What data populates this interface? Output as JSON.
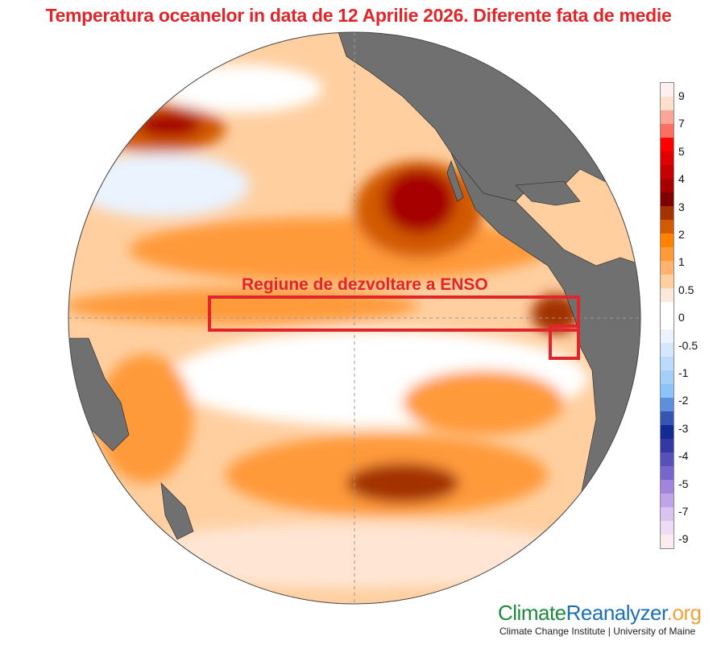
{
  "title": "Temperatura oceanelor in data de 12 Aprilie 2026. Diferente fata de medie",
  "annotation": {
    "label": "Regiune de dezvoltare a ENSO",
    "box_color": "#e0262b"
  },
  "colorbar": {
    "ticks": [
      "9",
      "7",
      "5",
      "4",
      "3",
      "2",
      "1",
      "0.5",
      "0",
      "-0.5",
      "-1",
      "-2",
      "-3",
      "-4",
      "-5",
      "-7",
      "-9"
    ],
    "colors": [
      "#fdf0f0",
      "#fde0cc",
      "#fca698",
      "#fb6e62",
      "#ff0000",
      "#e00000",
      "#c40000",
      "#a60000",
      "#800000",
      "#a33300",
      "#d25a00",
      "#ff8200",
      "#ff9a3a",
      "#ffb36e",
      "#ffcfa0",
      "#fde9dc",
      "#ffffff",
      "#ffffff",
      "#eaf3fe",
      "#d4e7fc",
      "#bcdbfa",
      "#a4cff9",
      "#8cc3f8",
      "#5f8fdc",
      "#3455b0",
      "#132a92",
      "#3438a4",
      "#5650b8",
      "#7866cc",
      "#a284dc",
      "#c0a4e8",
      "#d8c4f0",
      "#ecdcf4",
      "#fdecef"
    ]
  },
  "logo": {
    "part1": "Climate",
    "part2": "Reanalyzer",
    "part3": ".org",
    "subtitle": "Climate Change Institute | University of Maine",
    "colors": {
      "part1": "#1f8a3c",
      "part2": "#1d6fb5",
      "part3": "#f0a33a"
    }
  },
  "map": {
    "projection": "orthographic",
    "region": "Pacific Ocean",
    "ocean_anomaly_colors": {
      "warm_light": "#ffcfa0",
      "warm": "#ff9a3a",
      "warm_strong": "#d25a00",
      "hot": "#800000",
      "cool": "#bcdbfa",
      "neutral": "#ffffff"
    },
    "land_color": "#707070"
  }
}
